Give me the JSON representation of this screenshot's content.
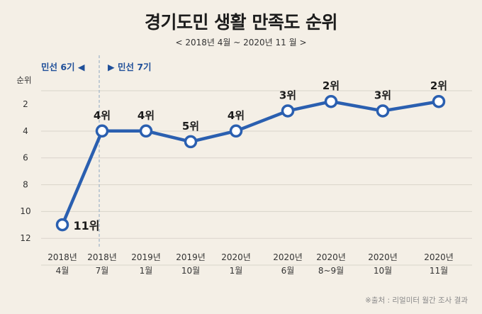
{
  "header": {
    "title": "경기도민 생활 만족도 순위",
    "subtitle": "< 2018년  4월 ~ 2020년  11 월 >"
  },
  "eras": {
    "left_label": "민선 6기 ◀",
    "right_label": "▶ 민선 7기"
  },
  "source": "※출처 : 리얼미터 월간 조사 결과",
  "colors": {
    "line": "#2a5fb0",
    "marker_fill": "#ffffff",
    "grid": "#d9d4cb",
    "divider": "#9fb3c8",
    "background": "#f4efe6"
  },
  "chart_data": {
    "type": "line",
    "title": "경기도민 생활 만족도 순위",
    "ylabel": "순위",
    "yticks": [
      "2",
      "4",
      "6",
      "8",
      "10",
      "12"
    ],
    "ylim": [
      12.5,
      0.5
    ],
    "y_inverted": true,
    "grid": "horizontal",
    "categories": [
      [
        "2018년",
        "4월"
      ],
      [
        "2018년",
        "7월"
      ],
      [
        "2019년",
        "1월"
      ],
      [
        "2019년",
        "10월"
      ],
      [
        "2020년",
        "1월"
      ],
      [
        "2020년",
        "6월"
      ],
      [
        "2020년",
        "8~9월"
      ],
      [
        "2020년",
        "10월"
      ],
      [
        "2020년",
        "11월"
      ]
    ],
    "series": [
      {
        "values": [
          11,
          4,
          4,
          4.8,
          4,
          2.5,
          1.8,
          2.5,
          1.8
        ],
        "rank_labels": [
          11,
          4,
          4,
          5,
          4,
          3,
          2,
          3,
          2
        ],
        "data_labels": [
          "11위",
          "4위",
          "4위",
          "5위",
          "4위",
          "3위",
          "2위",
          "3위",
          "2위"
        ]
      }
    ],
    "divider_between": [
      0,
      1
    ]
  }
}
